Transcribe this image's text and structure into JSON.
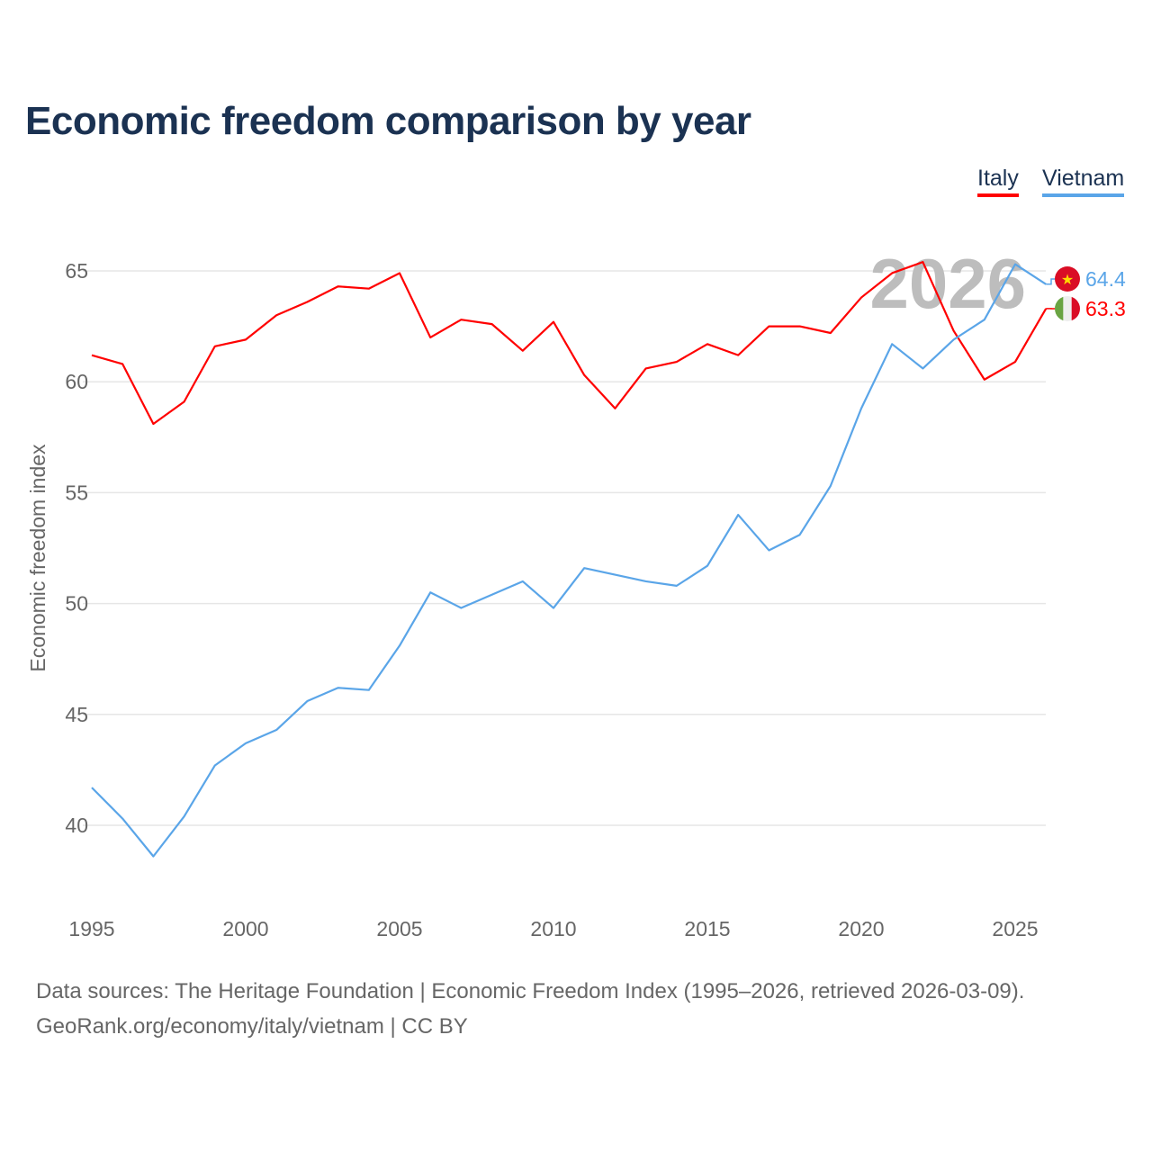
{
  "chart_data": {
    "type": "line",
    "title": "Economic freedom comparison by year",
    "xlabel": "",
    "ylabel": "Economic freedom index",
    "xlim": [
      1995,
      2026
    ],
    "ylim": [
      37,
      67
    ],
    "yticks": [
      40,
      45,
      50,
      55,
      60,
      65
    ],
    "xticks": [
      1995,
      2000,
      2005,
      2010,
      2015,
      2020,
      2025
    ],
    "grid": true,
    "legend_position": "top-right",
    "year_watermark": "2026",
    "x": [
      1995,
      1996,
      1997,
      1998,
      1999,
      2000,
      2001,
      2002,
      2003,
      2004,
      2005,
      2006,
      2007,
      2008,
      2009,
      2010,
      2011,
      2012,
      2013,
      2014,
      2015,
      2016,
      2017,
      2018,
      2019,
      2020,
      2021,
      2022,
      2023,
      2024,
      2025,
      2026
    ],
    "series": [
      {
        "name": "Italy",
        "color": "#ff0000",
        "end_label": "63.3",
        "values": [
          61.2,
          60.8,
          58.1,
          59.1,
          61.6,
          61.9,
          63.0,
          63.6,
          64.3,
          64.2,
          64.9,
          62.0,
          62.8,
          62.6,
          61.4,
          62.7,
          60.3,
          58.8,
          60.6,
          60.9,
          61.7,
          61.2,
          62.5,
          62.5,
          62.2,
          63.8,
          64.9,
          65.4,
          62.3,
          60.1,
          60.9,
          63.3
        ]
      },
      {
        "name": "Vietnam",
        "color": "#5aa5e8",
        "end_label": "64.4",
        "values": [
          41.7,
          40.3,
          38.6,
          40.4,
          42.7,
          43.7,
          44.3,
          45.6,
          46.2,
          46.1,
          48.1,
          50.5,
          49.8,
          50.4,
          51.0,
          49.8,
          51.6,
          51.3,
          51.0,
          50.8,
          51.7,
          54.0,
          52.4,
          53.1,
          55.3,
          58.8,
          61.7,
          60.6,
          61.9,
          62.8,
          65.3,
          64.4
        ]
      }
    ]
  },
  "footer": {
    "line1": "Data sources: The Heritage Foundation | Economic Freedom Index (1995–2026, retrieved 2026-03-09).",
    "line2": "GeoRank.org/economy/italy/vietnam | CC BY"
  }
}
